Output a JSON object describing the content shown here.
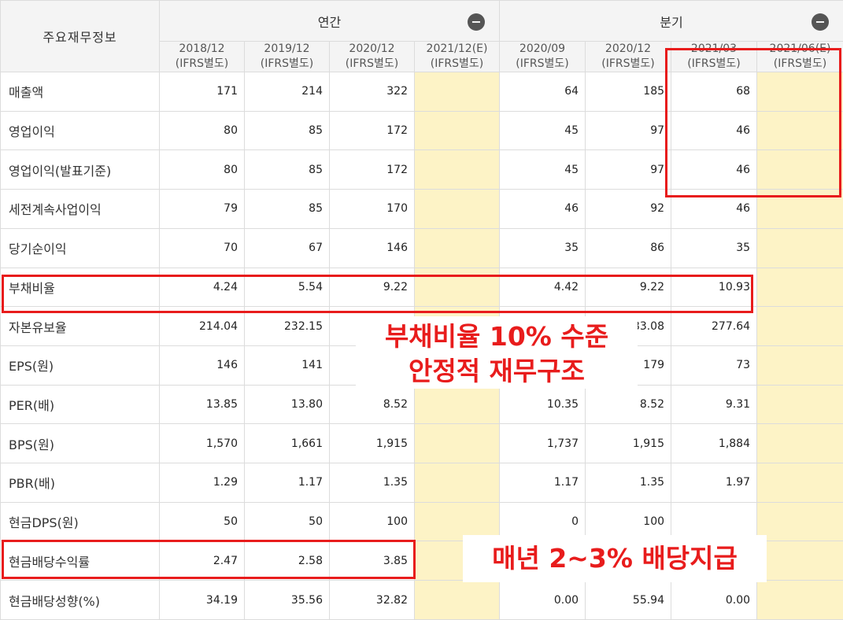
{
  "table": {
    "corner_label": "주요재무정보",
    "groups": {
      "annual": "연간",
      "quarterly": "분기",
      "collapse_symbol": "−"
    },
    "periods": [
      {
        "date": "2018/12",
        "basis": "(IFRS별도)"
      },
      {
        "date": "2019/12",
        "basis": "(IFRS별도)"
      },
      {
        "date": "2020/12",
        "basis": "(IFRS별도)"
      },
      {
        "date": "2021/12(E)",
        "basis": "(IFRS별도)"
      },
      {
        "date": "2020/09",
        "basis": "(IFRS별도)"
      },
      {
        "date": "2020/12",
        "basis": "(IFRS별도)"
      },
      {
        "date": "2021/03",
        "basis": "(IFRS별도)"
      },
      {
        "date": "2021/06(E)",
        "basis": "(IFRS별도)"
      }
    ],
    "rows": [
      {
        "label": "매출액",
        "values": [
          "171",
          "214",
          "322",
          "",
          "64",
          "185",
          "68",
          ""
        ]
      },
      {
        "label": "영업이익",
        "values": [
          "80",
          "85",
          "172",
          "",
          "45",
          "97",
          "46",
          ""
        ]
      },
      {
        "label": "영업이익(발표기준)",
        "values": [
          "80",
          "85",
          "172",
          "",
          "45",
          "97",
          "46",
          ""
        ]
      },
      {
        "label": "세전계속사업이익",
        "values": [
          "79",
          "85",
          "170",
          "",
          "46",
          "92",
          "46",
          ""
        ]
      },
      {
        "label": "당기순이익",
        "values": [
          "70",
          "67",
          "146",
          "",
          "35",
          "86",
          "35",
          ""
        ]
      },
      {
        "label": "부채비율",
        "values": [
          "4.24",
          "5.54",
          "9.22",
          "",
          "4.42",
          "9.22",
          "10.93",
          ""
        ]
      },
      {
        "label": "자본유보율",
        "values": [
          "214.04",
          "232.15",
          "",
          "",
          "",
          "83.08",
          "277.64",
          ""
        ]
      },
      {
        "label": "EPS(원)",
        "values": [
          "146",
          "141",
          "",
          "",
          "",
          "179",
          "73",
          ""
        ]
      },
      {
        "label": "PER(배)",
        "values": [
          "13.85",
          "13.80",
          "8.52",
          "",
          "10.35",
          "8.52",
          "9.31",
          ""
        ]
      },
      {
        "label": "BPS(원)",
        "values": [
          "1,570",
          "1,661",
          "1,915",
          "",
          "1,737",
          "1,915",
          "1,884",
          ""
        ]
      },
      {
        "label": "PBR(배)",
        "values": [
          "1.29",
          "1.17",
          "1.35",
          "",
          "1.17",
          "1.35",
          "1.97",
          ""
        ]
      },
      {
        "label": "현금DPS(원)",
        "values": [
          "50",
          "50",
          "100",
          "",
          "0",
          "100",
          "",
          ""
        ]
      },
      {
        "label": "현금배당수익률",
        "values": [
          "2.47",
          "2.58",
          "3.85",
          "",
          "",
          "",
          "",
          ""
        ]
      },
      {
        "label": "현금배당성향(%)",
        "values": [
          "34.19",
          "35.56",
          "32.82",
          "",
          "0.00",
          "55.94",
          "0.00",
          ""
        ]
      }
    ]
  },
  "annotations": {
    "debt_line1": "부채비율 10% 수준",
    "debt_line2": "안정적 재무구조",
    "dividend": "매년 2~3% 배당지급",
    "highlight_color": "#e81c1c"
  }
}
